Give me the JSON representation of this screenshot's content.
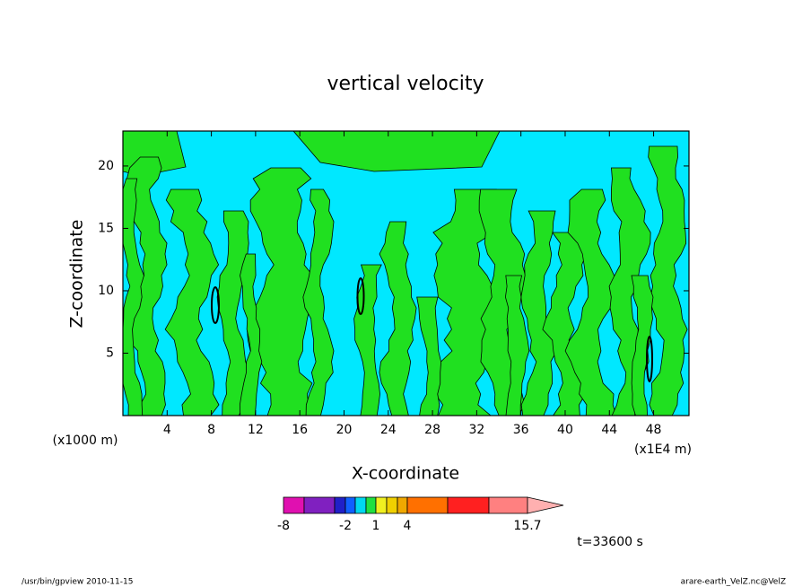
{
  "chart_data": {
    "type": "contour",
    "title": "vertical velocity",
    "x_label": "X-coordinate",
    "y_label": "Z-coordinate",
    "x_unit_left": "(x1000 m)",
    "x_unit_right": "(x1E4 m)",
    "xlim": [
      0,
      51.2
    ],
    "xticks": [
      4,
      8,
      12,
      16,
      20,
      24,
      28,
      32,
      36,
      40,
      44,
      48
    ],
    "ylim": [
      0,
      22.8
    ],
    "yticks": [
      5,
      10,
      15,
      20
    ],
    "field_colors": [
      "#00e8ff",
      "#20e020"
    ],
    "colorbar": {
      "colors": [
        "#e010b0",
        "#8020c0",
        "#2020c8",
        "#1060ff",
        "#00d8f0",
        "#20e040",
        "#f0f020",
        "#f0d000",
        "#f0a800",
        "#ff7000",
        "#ff2020",
        "#ff8080",
        "#ffb0b0"
      ],
      "ticks": [
        -8,
        -2,
        1,
        4,
        15.7
      ]
    },
    "time_label": "t=33600 s",
    "footer_left": "/usr/bin/gpview   2010-11-15",
    "footer_right": "arare-earth_VelZ.nc@VelZ"
  }
}
